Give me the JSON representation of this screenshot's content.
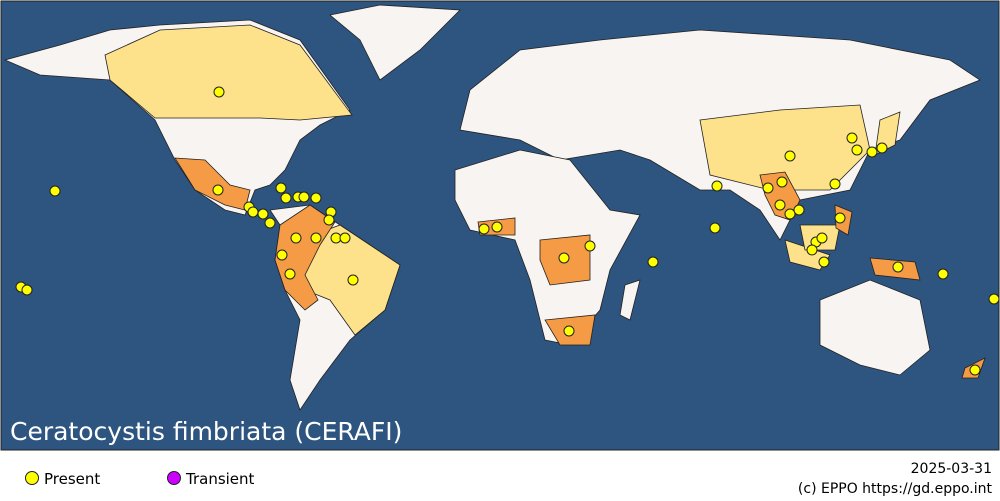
{
  "map": {
    "title": "Ceratocystis fimbriata (CERAFI)",
    "legend": [
      {
        "label": "Present",
        "color": "#ffff00"
      },
      {
        "label": "Transient",
        "color": "#cc00ff"
      }
    ],
    "date": "2025-03-31",
    "credit": "(c) EPPO https://gd.eppo.int"
  }
}
